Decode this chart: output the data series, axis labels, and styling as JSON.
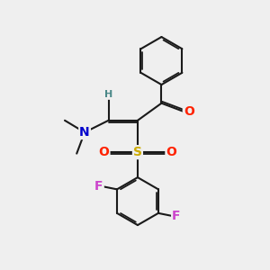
{
  "bg_color": "#efefef",
  "bond_color": "#1a1a1a",
  "bond_width": 1.5,
  "atom_colors": {
    "O": "#ff2200",
    "S": "#ccaa00",
    "N": "#0000cc",
    "F": "#cc44cc",
    "H": "#4a8888",
    "C": "#1a1a1a"
  },
  "font_size_atoms": 10,
  "font_size_H": 8
}
